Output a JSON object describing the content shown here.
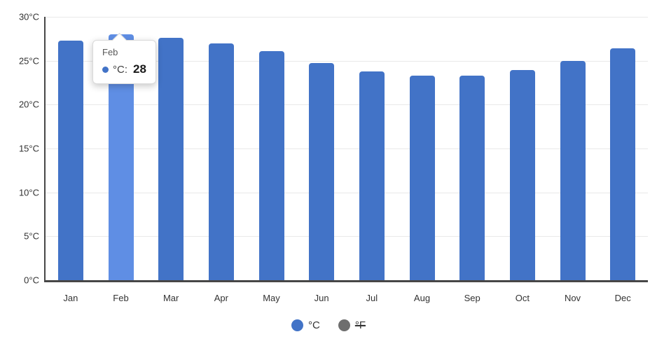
{
  "chart_data": {
    "type": "bar",
    "categories": [
      "Jan",
      "Feb",
      "Mar",
      "Apr",
      "May",
      "Jun",
      "Jul",
      "Aug",
      "Sep",
      "Oct",
      "Nov",
      "Dec"
    ],
    "series": [
      {
        "name": "°C",
        "color": "#4273C7",
        "visible": true,
        "values": [
          27.3,
          28,
          27.6,
          27,
          26.1,
          24.7,
          23.8,
          23.3,
          23.3,
          23.9,
          25,
          26.4
        ]
      },
      {
        "name": "°F",
        "color": "#6E6E6E",
        "visible": false,
        "values": []
      }
    ],
    "xlabel": "",
    "ylabel": "",
    "ylim": [
      0,
      30
    ],
    "ytick_step": 5,
    "ytick_labels": [
      "0°C",
      "5°C",
      "10°C",
      "15°C",
      "20°C",
      "25°C",
      "30°C"
    ],
    "grid": true,
    "legend_position": "bottom",
    "highlight": {
      "category": "Feb",
      "color": "#5F8EE4"
    }
  },
  "tooltip": {
    "title": "Feb",
    "series_label": "°C:",
    "value": "28",
    "marker_color": "#4273C7"
  },
  "legend": {
    "items": [
      {
        "label": "°C",
        "dot_color": "#4273C7",
        "struck": false
      },
      {
        "label": "°F",
        "dot_color": "#6E6E6E",
        "struck": true
      }
    ]
  },
  "colors": {
    "bar": "#4273C7",
    "bar_highlight": "#5F8EE4",
    "axis": "#474747",
    "gridline": "#e9e9e9",
    "text": "#333333"
  }
}
